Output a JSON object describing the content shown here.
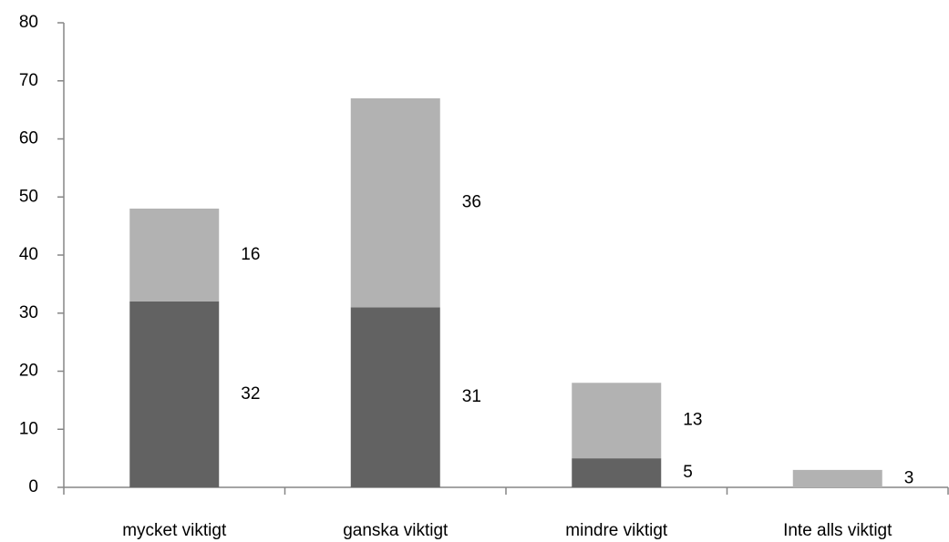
{
  "chart_data": {
    "type": "stacked_bar",
    "categories": [
      "mycket viktigt",
      "ganska viktigt",
      "mindre viktigt",
      "Inte alls viktigt"
    ],
    "series": [
      {
        "color": "#626262",
        "values": [
          32,
          31,
          5,
          null
        ]
      },
      {
        "color": "#b2b2b2",
        "values": [
          16,
          36,
          13,
          3
        ]
      }
    ],
    "ylim": [
      0,
      80
    ],
    "yticks": [
      0,
      10,
      20,
      30,
      40,
      50,
      60,
      70,
      80
    ],
    "grid": false
  }
}
